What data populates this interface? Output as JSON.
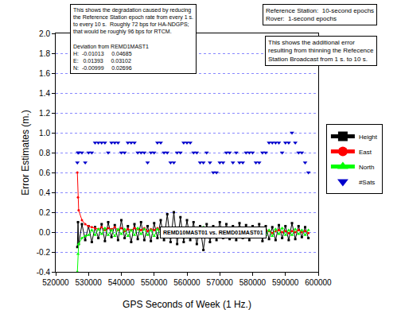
{
  "chart_data": {
    "type": "scatter",
    "x_label": "GPS Seconds of Week (1 Hz.)",
    "y_label": "Error Estimates (m.)",
    "xlim": [
      520000,
      600000
    ],
    "xticks": [
      520000,
      530000,
      540000,
      550000,
      560000,
      570000,
      580000,
      590000,
      600000
    ],
    "ylim": [
      -0.4,
      2.0
    ],
    "yticks": [
      -0.4,
      -0.2,
      {
        "value": 0,
        "label": "0.0"
      },
      0.2,
      0.4,
      0.6,
      0.8,
      {
        "value": 1,
        "label": "1.0"
      },
      1.2,
      1.4,
      1.6,
      1.8,
      {
        "value": 2,
        "label": "2.0"
      }
    ],
    "grid": true,
    "legend": "right",
    "x": [
      526600,
      526800,
      527000,
      528000,
      529000,
      530000,
      531000,
      532000,
      533000,
      534000,
      535000,
      536000,
      537000,
      538000,
      539000,
      540000,
      541000,
      542000,
      543000,
      544000,
      545000,
      546000,
      547000,
      548000,
      549000,
      550000,
      551000,
      552000,
      553000,
      554000,
      555000,
      556000,
      557000,
      558000,
      559000,
      560000,
      561000,
      562000,
      563000,
      564000,
      565000,
      566000,
      567000,
      568000,
      569000,
      570000,
      571000,
      572000,
      573000,
      574000,
      575000,
      576000,
      577000,
      578000,
      579000,
      580000,
      581000,
      582000,
      583000,
      584000,
      585000,
      586000,
      587000,
      588000,
      589000,
      590000,
      591000,
      592000,
      593000,
      594000,
      595000,
      596000,
      597000
    ],
    "series": [
      {
        "name": "Height",
        "color": "#000000",
        "marker": "square",
        "values": [
          -0.15,
          0.1,
          -0.12,
          0.08,
          -0.08,
          0.06,
          -0.1,
          0.05,
          -0.06,
          0.08,
          -0.09,
          0.1,
          -0.05,
          0.07,
          -0.08,
          0.12,
          -0.06,
          0.06,
          -0.1,
          0.08,
          -0.07,
          0.1,
          -0.08,
          0.06,
          -0.09,
          0.09,
          -0.06,
          0.12,
          -0.08,
          0.18,
          -0.1,
          0.2,
          -0.12,
          0.15,
          -0.1,
          0.12,
          -0.08,
          0.1,
          -0.12,
          0.06,
          -0.18,
          0.08,
          -0.1,
          0.06,
          -0.08,
          0.1,
          -0.06,
          0.08,
          -0.07,
          0.06,
          -0.08,
          0.09,
          -0.06,
          0.07,
          -0.08,
          0.06,
          -0.05,
          0.08,
          -0.09,
          0.06,
          -0.07,
          0.05,
          -0.08,
          0.07,
          -0.06,
          0.06,
          -0.08,
          0.09,
          -0.07,
          0.06,
          -0.05,
          0.05,
          -0.06
        ]
      },
      {
        "name": "East",
        "color": "#ff0000",
        "marker": "circle",
        "values": [
          0.6,
          0.35,
          0.22,
          0.12,
          0.08,
          0.06,
          0.05,
          0.04,
          0.03,
          0.05,
          0.02,
          0.04,
          0.03,
          0.05,
          0.02,
          0.04,
          0.01,
          0.03,
          0.02,
          0.04,
          0.03,
          0.02,
          0.04,
          0.01,
          0.03,
          0.02,
          0.04,
          0.02,
          0.03,
          0.01,
          0.03,
          0.02,
          0.04,
          0.02,
          0.01,
          0.03,
          0.02,
          0.04,
          0.01,
          0.02,
          0.03,
          0.01,
          0.02,
          0.03,
          0.01,
          0.02,
          0.0,
          0.02,
          0.01,
          0.03,
          0.01,
          0.0,
          0.02,
          0.01,
          0.03,
          0.0,
          0.02,
          0.01,
          0.0,
          0.02,
          0.01,
          -0.01,
          0.01,
          0.02,
          0.0,
          0.01,
          -0.01,
          0.01,
          0.0,
          0.02,
          0.0,
          0.01,
          -0.01
        ]
      },
      {
        "name": "North",
        "color": "#00ff00",
        "marker": "triangle-up",
        "values": [
          -0.4,
          -0.22,
          -0.12,
          -0.06,
          -0.04,
          -0.03,
          0.02,
          -0.03,
          0.03,
          -0.02,
          0.04,
          -0.03,
          0.02,
          -0.04,
          0.03,
          -0.02,
          0.03,
          -0.04,
          0.02,
          -0.03,
          0.04,
          -0.02,
          0.03,
          -0.03,
          0.02,
          -0.04,
          0.03,
          -0.02,
          0.04,
          -0.03,
          0.02,
          -0.05,
          0.03,
          -0.02,
          0.04,
          -0.03,
          0.02,
          -0.04,
          0.03,
          -0.02,
          0.05,
          -0.03,
          0.02,
          -0.04,
          0.03,
          -0.02,
          0.04,
          -0.03,
          0.02,
          -0.03,
          0.03,
          -0.02,
          0.04,
          -0.03,
          0.02,
          -0.04,
          0.03,
          -0.02,
          0.03,
          -0.03,
          0.02,
          -0.04,
          0.03,
          -0.02,
          0.04,
          -0.03,
          0.02,
          -0.03,
          0.03,
          -0.02,
          0.02,
          -0.03,
          0.02
        ]
      },
      {
        "name": "#Sats",
        "color": "#0000cc",
        "marker": "triangle-down",
        "values": [
          0.7,
          0.8,
          0.8,
          0.8,
          0.7,
          0.8,
          0.8,
          0.9,
          0.9,
          0.9,
          0.9,
          0.8,
          0.9,
          0.9,
          0.9,
          0.8,
          0.8,
          0.9,
          0.9,
          0.9,
          0.8,
          0.8,
          0.8,
          0.7,
          0.8,
          0.8,
          0.9,
          0.9,
          0.8,
          0.8,
          0.7,
          0.7,
          0.8,
          0.8,
          0.9,
          0.9,
          0.9,
          0.8,
          0.8,
          0.7,
          0.7,
          0.8,
          0.7,
          0.6,
          0.6,
          0.7,
          0.7,
          0.8,
          0.8,
          0.7,
          0.8,
          0.7,
          0.7,
          0.8,
          0.8,
          0.8,
          0.7,
          0.7,
          0.8,
          0.8,
          0.9,
          0.9,
          0.9,
          0.9,
          0.8,
          0.9,
          0.9,
          1.0,
          0.9,
          0.8,
          0.8,
          0.7,
          0.6
        ]
      }
    ],
    "annotations": [
      {
        "text": [
          "This shows the degradation caused by reducing",
          "the Reference Station epoch rate from every 1 s.",
          "to every 10 s.  Roughly 72 bps for HA-NDGPS;",
          "that would be roughly 96 bps for RTCM.",
          "",
          "Deviation from REMD1MAST1",
          "H:  -0.01013     0.04685",
          "E:   0.01393     0.03102",
          "N:  -0.00999     0.02696"
        ]
      },
      {
        "text": [
          "Reference Station:  10-second epochs",
          "Rover:  1-second epochs"
        ]
      },
      {
        "text": [
          "This shows the additional error",
          "resulting from thinning the Refecence",
          "Station Broadcast from 1 s. to 10 s."
        ]
      },
      {
        "text": [
          "REMD10MAST01 vs. REMD01MAST01"
        ]
      }
    ]
  }
}
